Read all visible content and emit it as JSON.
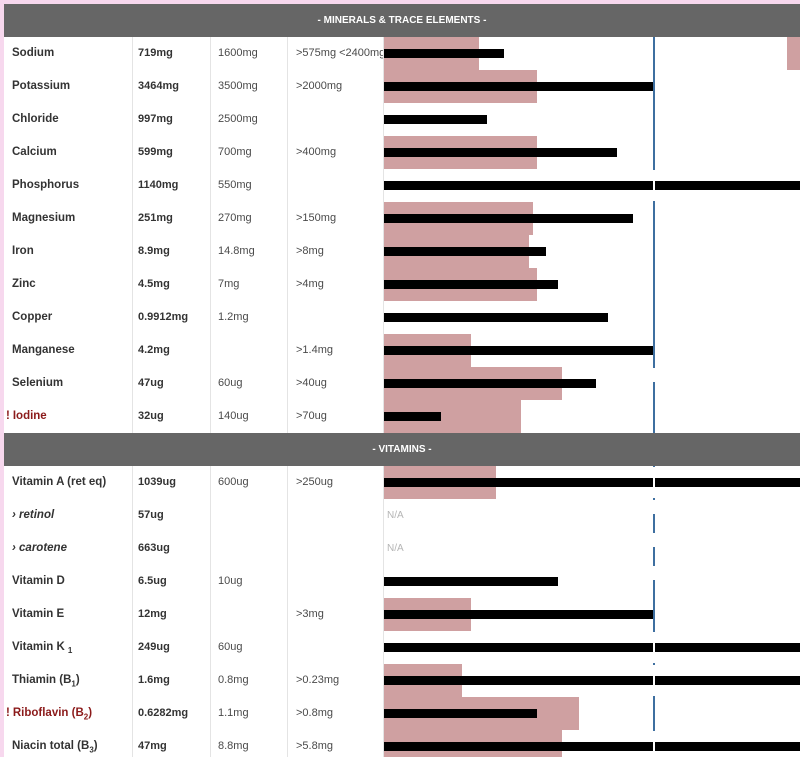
{
  "sections": [
    {
      "title": "- MINERALS & TRACE ELEMENTS -",
      "rows": [
        {
          "name": "Sodium",
          "amount": "719mg",
          "rdi": "1600mg",
          "min": ">575mg <2400mg",
          "pink": 23,
          "black": 29,
          "extra_pink": 3
        },
        {
          "name": "Potassium",
          "amount": "3464mg",
          "rdi": "3500mg",
          "min": ">2000mg",
          "pink": 37,
          "black": 65
        },
        {
          "name": "Chloride",
          "amount": "997mg",
          "rdi": "2500mg",
          "min": "",
          "pink": 0,
          "black": 25
        },
        {
          "name": "Calcium",
          "amount": "599mg",
          "rdi": "700mg",
          "min": ">400mg",
          "pink": 37,
          "black": 56
        },
        {
          "name": "Phosphorus",
          "amount": "1140mg",
          "rdi": "550mg",
          "min": "",
          "pink": 0,
          "black": 100
        },
        {
          "name": "Magnesium",
          "amount": "251mg",
          "rdi": "270mg",
          "min": ">150mg",
          "pink": 36,
          "black": 60
        },
        {
          "name": "Iron",
          "amount": "8.9mg",
          "rdi": "14.8mg",
          "min": ">8mg",
          "pink": 35,
          "black": 39
        },
        {
          "name": "Zinc",
          "amount": "4.5mg",
          "rdi": "7mg",
          "min": ">4mg",
          "pink": 37,
          "black": 42
        },
        {
          "name": "Copper",
          "amount": "0.9912mg",
          "rdi": "1.2mg",
          "min": "",
          "pink": 0,
          "black": 54
        },
        {
          "name": "Manganese",
          "amount": "4.2mg",
          "rdi": "",
          "min": ">1.4mg",
          "pink": 21,
          "black": 65
        },
        {
          "name": "Selenium",
          "amount": "47ug",
          "rdi": "60ug",
          "min": ">40ug",
          "pink": 43,
          "black": 51
        },
        {
          "name": "Iodine",
          "amount": "32ug",
          "rdi": "140ug",
          "min": ">70ug",
          "warn": true,
          "pink": 33,
          "black": 14
        }
      ]
    },
    {
      "title": "- VITAMINS -",
      "rows": [
        {
          "name": "Vitamin A (ret eq)",
          "amount": "1039ug",
          "rdi": "600ug",
          "min": ">250ug",
          "pink": 27,
          "black": 100
        },
        {
          "name": "› retinol",
          "amount": "57ug",
          "rdi": "",
          "min": "",
          "sub": true,
          "na": "N/A"
        },
        {
          "name": "› carotene",
          "amount": "663ug",
          "rdi": "",
          "min": "",
          "sub": true,
          "na": "N/A"
        },
        {
          "name": "Vitamin D",
          "amount": "6.5ug",
          "rdi": "10ug",
          "min": "",
          "pink": 0,
          "black": 42
        },
        {
          "name": "Vitamin E",
          "amount": "12mg",
          "rdi": "",
          "min": ">3mg",
          "pink": 21,
          "black": 65
        },
        {
          "name": "Vitamin K",
          "name_sub": "1",
          "amount": "249ug",
          "rdi": "60ug",
          "min": "",
          "pink": 0,
          "black": 100
        },
        {
          "name": "Thiamin (B",
          "name_sub": "1",
          "name_end": ")",
          "amount": "1.6mg",
          "rdi": "0.8mg",
          "min": ">0.23mg",
          "pink": 19,
          "black": 100
        },
        {
          "name": "Riboflavin (B",
          "name_sub": "2",
          "name_end": ")",
          "amount": "0.6282mg",
          "rdi": "1.1mg",
          "min": ">0.8mg",
          "warn": true,
          "pink": 47,
          "black": 37
        },
        {
          "name": "Niacin total (B",
          "name_sub": "3",
          "name_end": ")",
          "amount": "47mg",
          "rdi": "8.8mg",
          "min": ">5.8mg",
          "pink": 43,
          "black": 100
        }
      ]
    }
  ],
  "colors": {
    "header_bg": "#666666",
    "bar_pink": "#cfa0a1",
    "bar_black": "#000000",
    "reference_line": "#3e6fa0",
    "warning_text": "#8b1a1a",
    "page_border": "#f7d8ee"
  },
  "warning_marker": "!"
}
